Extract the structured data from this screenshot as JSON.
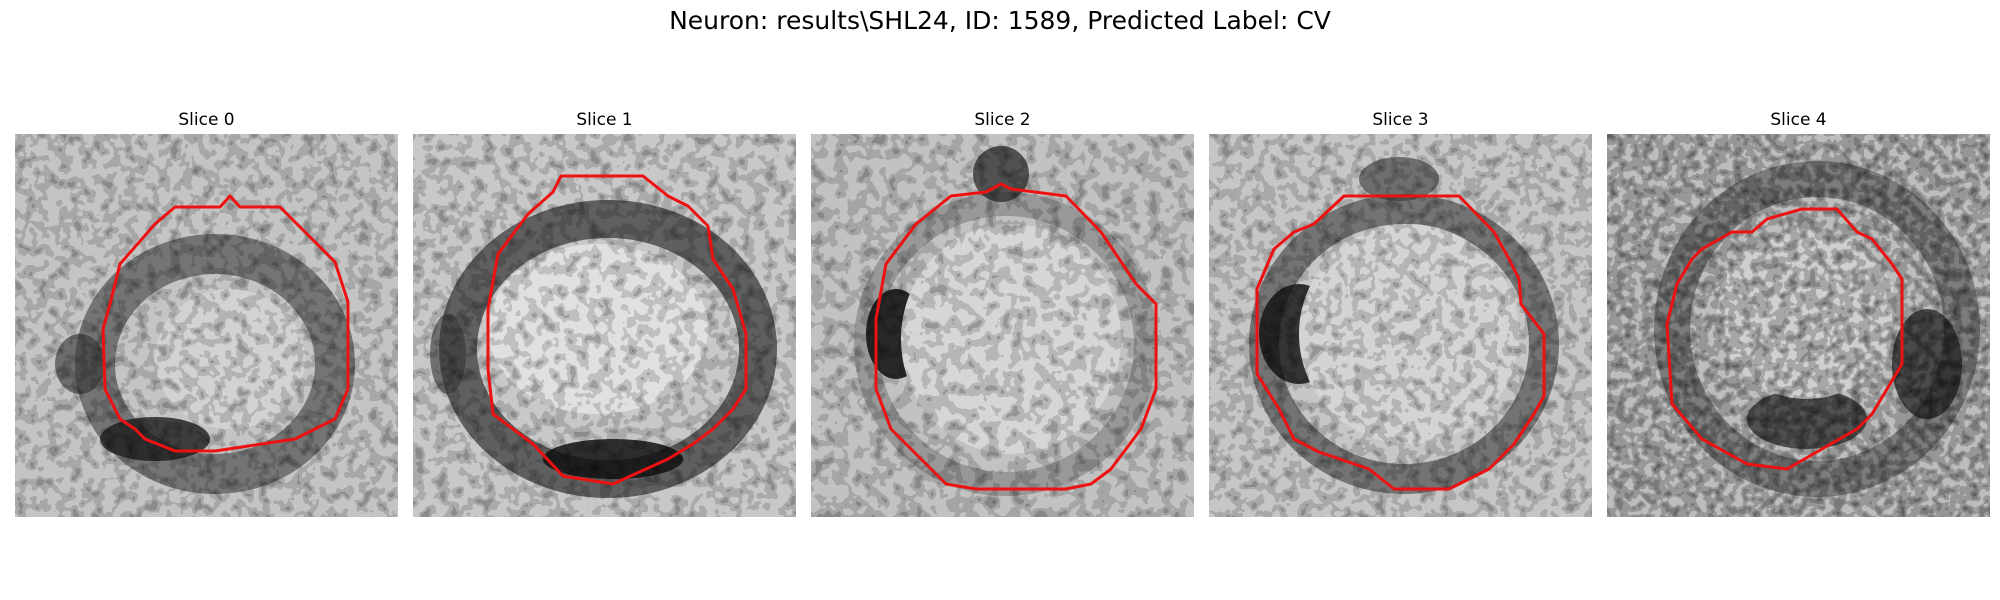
{
  "figure": {
    "title": "Neuron: results\\SHL24, ID: 1589, Predicted Label: CV"
  },
  "panels": [
    {
      "title": "Slice 0",
      "icon": "microscopy-slice-image"
    },
    {
      "title": "Slice 1",
      "icon": "microscopy-slice-image"
    },
    {
      "title": "Slice 2",
      "icon": "microscopy-slice-image"
    },
    {
      "title": "Slice 3",
      "icon": "microscopy-slice-image"
    },
    {
      "title": "Slice 4",
      "icon": "microscopy-slice-image"
    }
  ],
  "colors": {
    "contour": "#ee1111"
  }
}
